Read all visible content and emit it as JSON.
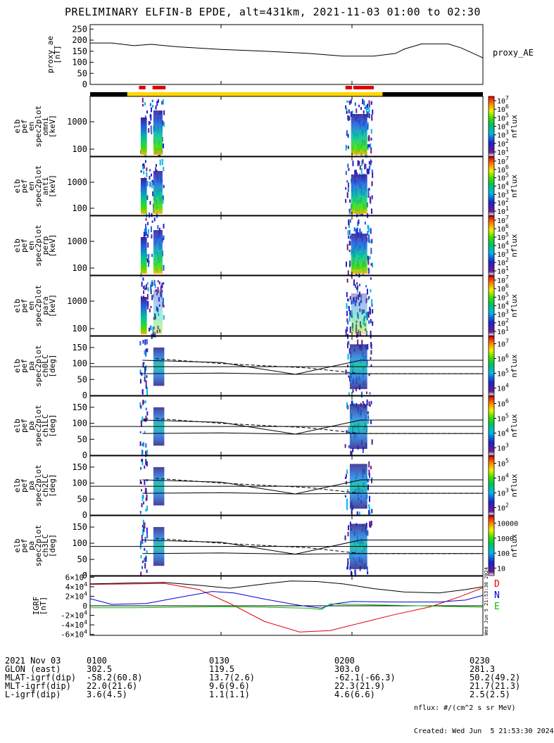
{
  "title": "PRELIMINARY ELFIN-B EPDE, alt=431km, 2021-11-03 01:00 to 02:30",
  "colors": {
    "axis": "#000000",
    "black_bar": "#000000",
    "sunlit_bar": "#ffd700",
    "flag": "#e00000",
    "igrf_D": "#e00000",
    "igrf_N": "#0000e0",
    "igrf_E": "#00c000",
    "igrf_total": "#000000"
  },
  "time_axis": {
    "start_min": 0,
    "end_min": 90,
    "ticks": [
      {
        "t": 0,
        "label": "0100"
      },
      {
        "t": 30,
        "label": "0130"
      },
      {
        "t": 60,
        "label": "0200"
      },
      {
        "t": 90,
        "label": "0230"
      }
    ]
  },
  "top_bar": {
    "sunlit_start": 8.5,
    "sunlit_end": 67,
    "flags": [
      [
        11.2,
        12.7
      ],
      [
        14.3,
        17.3
      ],
      [
        58.5,
        60.0
      ],
      [
        60.3,
        65.0
      ]
    ]
  },
  "proxy_ae": {
    "ylabel_lines": [
      "proxy_ae",
      "[nT]"
    ],
    "right_label": "proxy_AE",
    "yticks": [
      "0",
      "50",
      "100",
      "150",
      "200",
      "250"
    ],
    "ylim": [
      0,
      270
    ]
  },
  "spec_panels": [
    {
      "ylabel_lines": [
        "elb",
        "pef",
        "en",
        "spec2plot",
        "omni",
        "[keV]"
      ],
      "yticks": [
        "100",
        "1000"
      ],
      "cbar_ticks": [
        "10^1",
        "10^2",
        "10^3",
        "10^4",
        "10^5",
        "10^6",
        "10^7"
      ],
      "cbar_label": "nflux"
    },
    {
      "ylabel_lines": [
        "elb",
        "pef",
        "en",
        "spec2plot",
        "anti",
        "[keV]"
      ],
      "yticks": [
        "100",
        "1000"
      ],
      "cbar_ticks": [
        "10^1",
        "10^2",
        "10^3",
        "10^4",
        "10^5",
        "10^6",
        "10^7"
      ],
      "cbar_label": "nflux"
    },
    {
      "ylabel_lines": [
        "elb",
        "pef",
        "en",
        "spec2plot",
        "perp",
        "[keV]"
      ],
      "yticks": [
        "100",
        "1000"
      ],
      "cbar_ticks": [
        "10^1",
        "10^2",
        "10^3",
        "10^4",
        "10^5",
        "10^6",
        "10^7"
      ],
      "cbar_label": "nflux"
    },
    {
      "ylabel_lines": [
        "elb",
        "pef",
        "en",
        "spec2plot",
        "para",
        "[keV]"
      ],
      "yticks": [
        "100",
        "1000"
      ],
      "cbar_ticks": [
        "10^1",
        "10^2",
        "10^3",
        "10^4",
        "10^5",
        "10^6",
        "10^7"
      ],
      "cbar_label": "nflux"
    }
  ],
  "pa_panels": [
    {
      "ylabel_lines": [
        "elb",
        "pef",
        "pa",
        "spec2plot",
        "ch0LC",
        "[deg]"
      ],
      "yticks": [
        "0",
        "50",
        "100",
        "150"
      ],
      "cbar_ticks": [
        "10^4",
        "10^5",
        "10^6",
        "10^7"
      ],
      "cbar_label": "nflux"
    },
    {
      "ylabel_lines": [
        "elb",
        "pef",
        "pa",
        "spec2plot",
        "ch1LC",
        "[deg]"
      ],
      "yticks": [
        "0",
        "50",
        "100",
        "150"
      ],
      "cbar_ticks": [
        "10^3",
        "10^4",
        "10^5",
        "10^6"
      ],
      "cbar_label": "nflux"
    },
    {
      "ylabel_lines": [
        "elb",
        "pef",
        "pa",
        "spec2plot",
        "ch2LC",
        "[deg]"
      ],
      "yticks": [
        "0",
        "50",
        "100",
        "150"
      ],
      "cbar_ticks": [
        "10^2",
        "10^3",
        "10^4",
        "10^5"
      ],
      "cbar_label": "nflux"
    },
    {
      "ylabel_lines": [
        "elb",
        "pef",
        "pa",
        "spec2plot",
        "ch3LC",
        "[deg]"
      ],
      "yticks": [
        "0",
        "50",
        "100",
        "150"
      ],
      "cbar_ticks": [
        "10",
        "100",
        "1000",
        "10000"
      ],
      "cbar_label": "nflux"
    }
  ],
  "igrf_panel": {
    "ylabel_lines": [
      "IGRF",
      "[nT]"
    ],
    "yticks": [
      "-6×10^4",
      "-4×10^4",
      "-2×10^4",
      "0",
      "2×10^4",
      "4×10^4",
      "6×10^4"
    ],
    "ylim": [
      -62000,
      62000
    ],
    "legend": [
      "D",
      "N",
      "E"
    ],
    "side_note": "Wed Jun  5 21:53:30 2024"
  },
  "chart_data": {
    "type": "line",
    "x_units": "minutes after 2021-11-03 01:00",
    "series": [
      {
        "name": "proxy_AE",
        "x": [
          0,
          5,
          10,
          14,
          20,
          30,
          40,
          50,
          58,
          65,
          70,
          72,
          76,
          82,
          85,
          90
        ],
        "y": [
          187,
          187,
          175,
          181,
          170,
          158,
          150,
          140,
          128,
          128,
          140,
          160,
          183,
          183,
          165,
          120
        ]
      },
      {
        "name": "D",
        "x": [
          0,
          10,
          17,
          25,
          32,
          40,
          48,
          55,
          62,
          70,
          78,
          85,
          90
        ],
        "y": [
          45000,
          46000,
          47000,
          34000,
          5000,
          -33000,
          -55000,
          -52000,
          -36000,
          -18000,
          -2000,
          20000,
          38000
        ]
      },
      {
        "name": "N",
        "x": [
          0,
          5,
          13,
          20,
          28,
          33,
          40,
          48,
          53,
          56,
          60,
          70,
          80,
          86,
          90
        ],
        "y": [
          15000,
          3000,
          5000,
          17000,
          30000,
          27000,
          14000,
          1000,
          -5000,
          4000,
          9000,
          8000,
          8000,
          12000,
          22000
        ]
      },
      {
        "name": "E",
        "x": [
          0,
          10,
          20,
          30,
          40,
          50,
          53,
          55,
          60,
          65,
          80,
          90
        ],
        "y": [
          -4000,
          -4000,
          -3000,
          -2000,
          -3000,
          -5000,
          -8000,
          4000,
          3000,
          2000,
          -1000,
          -3000
        ]
      },
      {
        "name": "total",
        "x": [
          0,
          10,
          17,
          25,
          32,
          40,
          46,
          52,
          58,
          65,
          72,
          80,
          86,
          90
        ],
        "y": [
          46000,
          48000,
          49000,
          43000,
          37000,
          46000,
          52000,
          51000,
          46000,
          36000,
          29000,
          27000,
          34000,
          40000
        ]
      }
    ],
    "ylim": [
      -62000,
      62000
    ]
  },
  "footer": {
    "rows": [
      {
        "label": "2021 Nov 03",
        "v0": "0100",
        "v1": "0130",
        "v2": "0200",
        "v3": "0230"
      },
      {
        "label": "GLON (east)",
        "v0": "302.5",
        "v1": "119.5",
        "v2": "303.0",
        "v3": "281.3"
      },
      {
        "label": "MLAT-igrf(dip)",
        "v0": "-58.2(60.8)",
        "v1": "13.7(2.6)",
        "v2": "-62.1(-66.3)",
        "v3": "50.2(49.2)"
      },
      {
        "label": "MLT-igrf(dip)",
        "v0": "22.0(21.6)",
        "v1": "9.6(9.6)",
        "v2": "22.3(21.9)",
        "v3": "21.7(21.3)"
      },
      {
        "label": "L-igrf(dip)",
        "v0": "3.6(4.5)",
        "v1": "1.1(1.1)",
        "v2": "4.6(6.6)",
        "v3": "2.5(2.5)"
      }
    ],
    "note1": "nflux: #/(cm^2 s sr MeV)",
    "note2": "Created: Wed Jun  5 21:53:30 2024"
  }
}
